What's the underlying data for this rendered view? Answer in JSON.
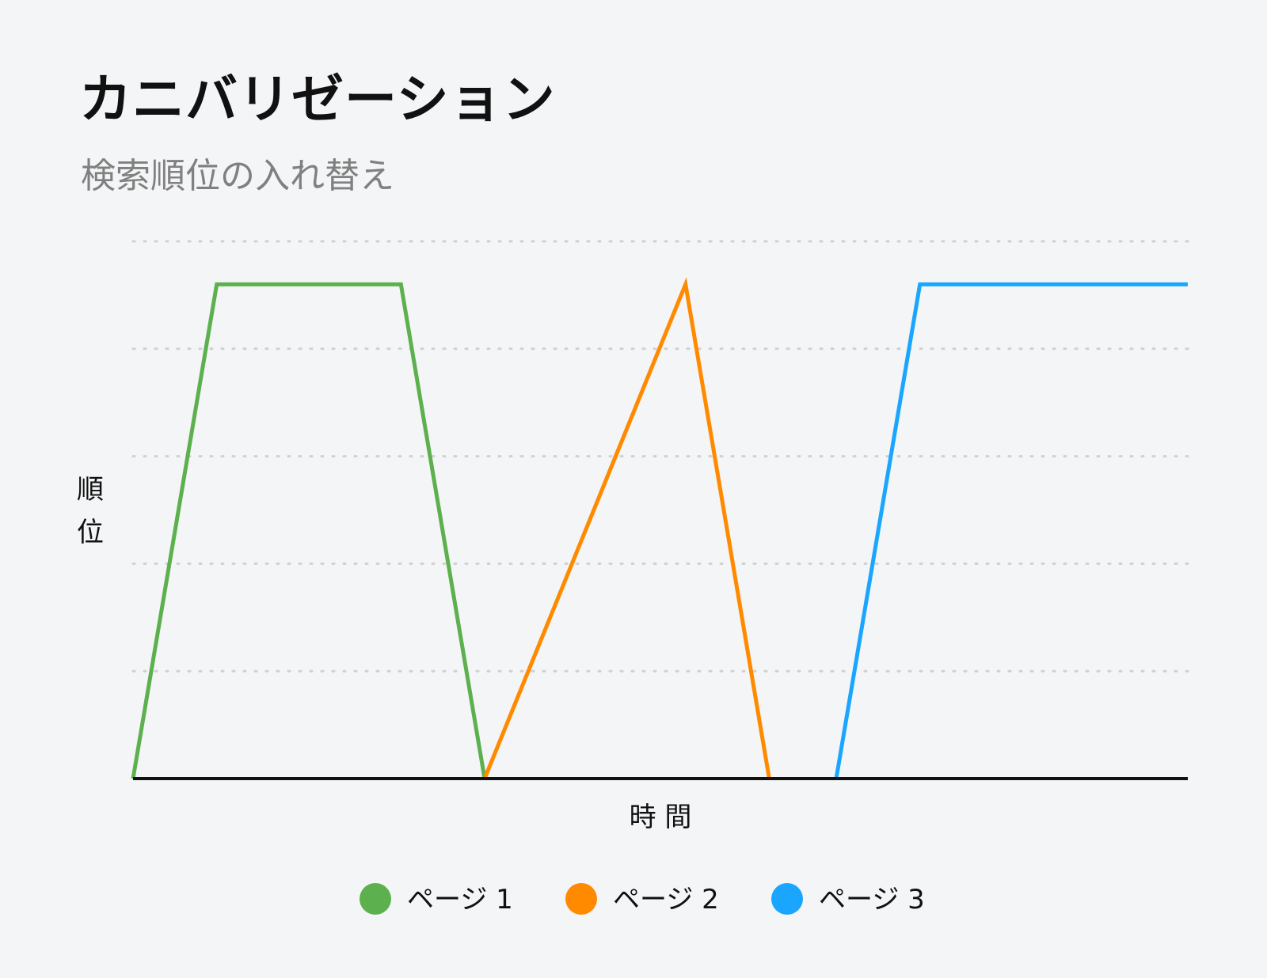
{
  "header": {
    "title": "カニバリゼーション",
    "subtitle": "検索順位の入れ替え"
  },
  "colors": {
    "background": "#f4f5f6",
    "grid": "#d0d0d0",
    "axis": "#111111"
  },
  "chart_data": {
    "type": "line",
    "title": "カニバリゼーション",
    "subtitle": "検索順位の入れ替え",
    "xlabel": "時 間",
    "ylabel": "順位",
    "xlim": [
      0,
      12.6
    ],
    "ylim": [
      0,
      5
    ],
    "grid": true,
    "grid_style": "dotted",
    "legend_position": "bottom-center",
    "series": [
      {
        "name": "ページ 1",
        "color": "#5cb14e",
        "x": [
          0,
          1,
          3.2,
          4.2
        ],
        "y": [
          0,
          4.6,
          4.6,
          0
        ]
      },
      {
        "name": "ページ 2",
        "color": "#ff8a00",
        "x": [
          4.2,
          6.6,
          7.6
        ],
        "y": [
          0,
          4.6,
          0
        ]
      },
      {
        "name": "ページ 3",
        "color": "#1aa6ff",
        "x": [
          8.4,
          9.4,
          12.6
        ],
        "y": [
          0,
          4.6,
          4.6
        ]
      }
    ]
  }
}
